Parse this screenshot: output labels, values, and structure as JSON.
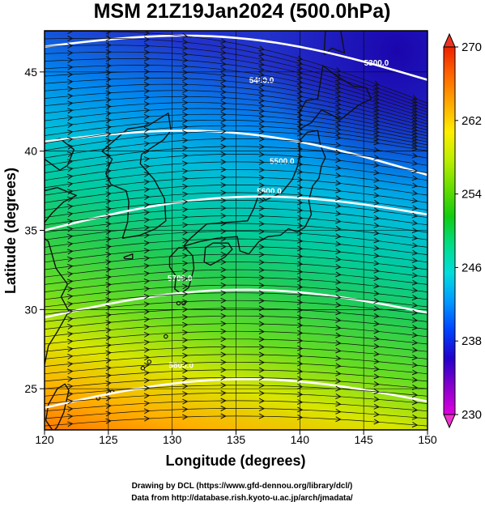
{
  "title": "MSM 21Z19Jan2024 (500.0hPa)",
  "xlabel": "Longitude (degrees)",
  "ylabel": "Latitude (degrees)",
  "credits": [
    "Drawing by DCL (https://www.gfd-dennou.org/library/dcl/)",
    "Data from http://database.rish.kyoto-u.ac.jp/arch/jmadata/"
  ],
  "chart_data": {
    "type": "heatmap",
    "field": "500 hPa temperature (K) with geopotential height contours and wind streamlines",
    "xlim": [
      120,
      150
    ],
    "ylim": [
      22.4,
      47.6
    ],
    "xticks": [
      120,
      125,
      130,
      135,
      140,
      145,
      150
    ],
    "yticks": [
      25,
      30,
      35,
      40,
      45
    ],
    "grid": true,
    "colorbar": {
      "min": 230,
      "max": 270,
      "ticks": [
        230,
        238,
        246,
        254,
        262,
        270
      ],
      "colors": [
        "#e000e0",
        "#8800cc",
        "#2200cc",
        "#0044ff",
        "#0099ff",
        "#00dddd",
        "#00dd88",
        "#11cc11",
        "#66dd00",
        "#bbee00",
        "#ffee00",
        "#ffaa00",
        "#ff6600",
        "#ee2200"
      ]
    },
    "contours": [
      {
        "label": "5300.0",
        "lat_at_120": 46.6,
        "lat_at_150": 44.5
      },
      {
        "label": "5400.0",
        "lat_at_120": 40.6,
        "lat_at_150": 38.5
      },
      {
        "label": "5500.0",
        "lat_at_120": 35.0,
        "lat_at_150": 36.0
      },
      {
        "label": "5600.0",
        "lat_at_120": 29.5,
        "lat_at_150": 29.8
      },
      {
        "label": "5700.0",
        "lat_at_120": 23.8,
        "lat_at_150": 24.2
      }
    ],
    "contour_labels": [
      {
        "text": "5300.0",
        "lon": 146.0,
        "lat": 45.4
      },
      {
        "text": "5400.0",
        "lon": 137.0,
        "lat": 44.3
      },
      {
        "text": "5500.0",
        "lon": 138.6,
        "lat": 39.2
      },
      {
        "text": "5600.0",
        "lon": 137.6,
        "lat": 37.3
      },
      {
        "text": "5700.0",
        "lon": 130.6,
        "lat": 31.8
      },
      {
        "text": "5800.0",
        "lon": 130.7,
        "lat": 26.3
      }
    ]
  },
  "colors": {
    "coast": "#111111",
    "grid": "#000000",
    "contour": "#ffffff",
    "arrow": "#101010"
  }
}
